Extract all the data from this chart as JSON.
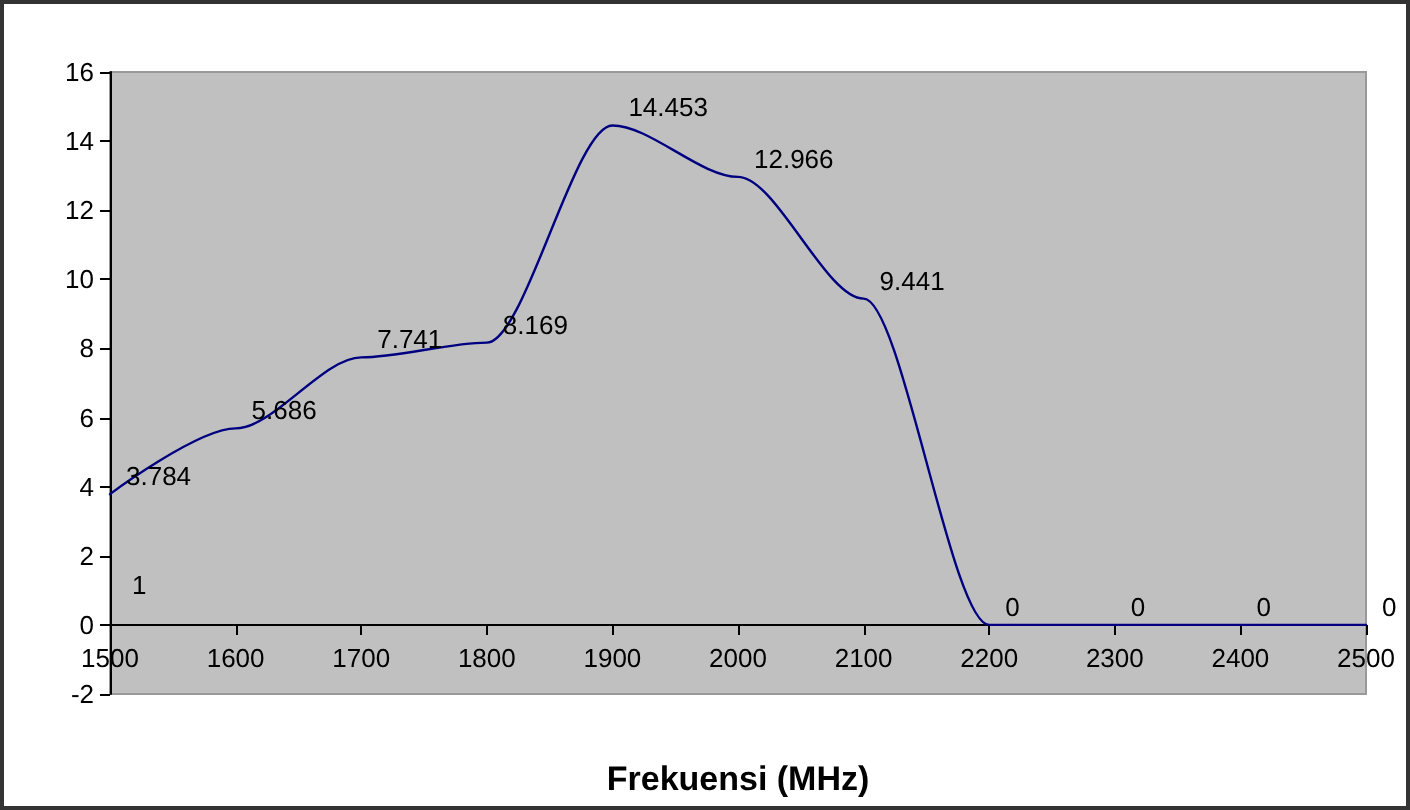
{
  "chart_data": {
    "type": "line",
    "xlabel": "Frekuensi (MHz)",
    "x": [
      1500,
      1600,
      1700,
      1800,
      1900,
      2000,
      2100,
      2200,
      2300,
      2400,
      2500
    ],
    "series": [
      {
        "color": "#000080",
        "values": [
          3.784,
          5.686,
          7.741,
          8.169,
          14.453,
          12.966,
          9.441,
          0,
          0,
          0,
          0
        ]
      }
    ],
    "xlim": [
      1500,
      2500
    ],
    "xticks": [
      1500,
      1600,
      1700,
      1800,
      1900,
      2000,
      2100,
      2200,
      2300,
      2400,
      2500
    ],
    "ylim": [
      -2,
      16
    ],
    "yticks": [
      -2,
      0,
      2,
      4,
      6,
      8,
      10,
      12,
      14,
      16
    ],
    "data_labels": true,
    "marker": "none",
    "line_style": "solid",
    "annotations": [
      "1"
    ]
  }
}
